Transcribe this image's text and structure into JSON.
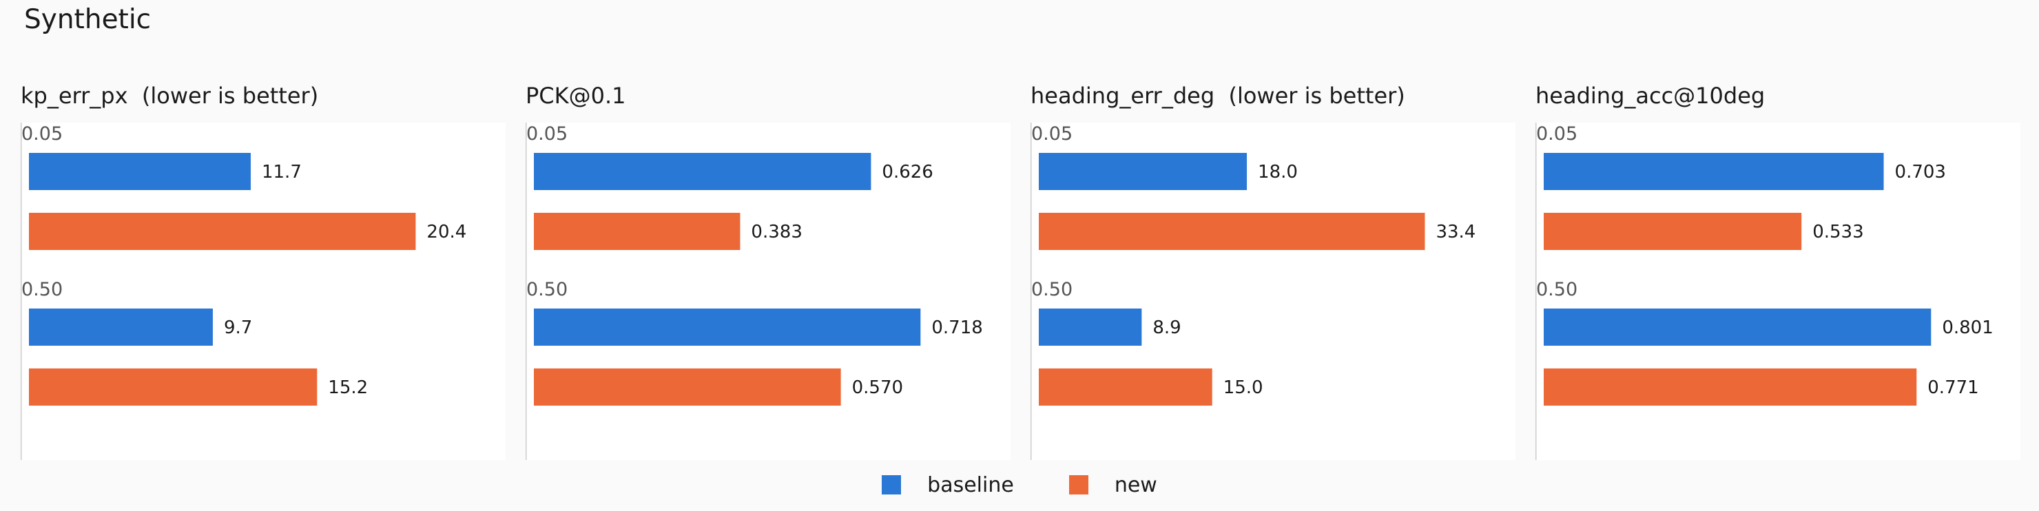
{
  "title": "Synthetic",
  "colors": {
    "baseline": "#2a78d6",
    "new": "#ec6836"
  },
  "legend": [
    {
      "label": "baseline",
      "color": "#2a78d6"
    },
    {
      "label": "new",
      "color": "#ec6836"
    }
  ],
  "chart_data": [
    {
      "type": "bar",
      "orientation": "horizontal",
      "title": "kp_err_px  (lower is better)",
      "categories": [
        "0.05",
        "0.50"
      ],
      "series": [
        {
          "name": "baseline",
          "values": [
            11.7,
            9.7
          ],
          "labels": [
            "11.7",
            "9.7"
          ]
        },
        {
          "name": "new",
          "values": [
            20.4,
            15.2
          ],
          "labels": [
            "20.4",
            "15.2"
          ]
        }
      ],
      "xlim": [
        0,
        25
      ]
    },
    {
      "type": "bar",
      "orientation": "horizontal",
      "title": "PCK@0.1",
      "categories": [
        "0.05",
        "0.50"
      ],
      "series": [
        {
          "name": "baseline",
          "values": [
            0.626,
            0.718
          ],
          "labels": [
            "0.626",
            "0.718"
          ]
        },
        {
          "name": "new",
          "values": [
            0.383,
            0.57
          ],
          "labels": [
            "0.383",
            "0.570"
          ]
        }
      ],
      "xlim": [
        0,
        0.88
      ]
    },
    {
      "type": "bar",
      "orientation": "horizontal",
      "title": "heading_err_deg  (lower is better)",
      "categories": [
        "0.05",
        "0.50"
      ],
      "series": [
        {
          "name": "baseline",
          "values": [
            18.0,
            8.9
          ],
          "labels": [
            "18.0",
            "8.9"
          ]
        },
        {
          "name": "new",
          "values": [
            33.4,
            15.0
          ],
          "labels": [
            "33.4",
            "15.0"
          ]
        }
      ],
      "xlim": [
        0,
        41
      ]
    },
    {
      "type": "bar",
      "orientation": "horizontal",
      "title": "heading_acc@10deg",
      "categories": [
        "0.05",
        "0.50"
      ],
      "series": [
        {
          "name": "baseline",
          "values": [
            0.703,
            0.801
          ],
          "labels": [
            "0.703",
            "0.801"
          ]
        },
        {
          "name": "new",
          "values": [
            0.533,
            0.771
          ],
          "labels": [
            "0.533",
            "0.771"
          ]
        }
      ],
      "xlim": [
        0,
        0.98
      ]
    }
  ]
}
